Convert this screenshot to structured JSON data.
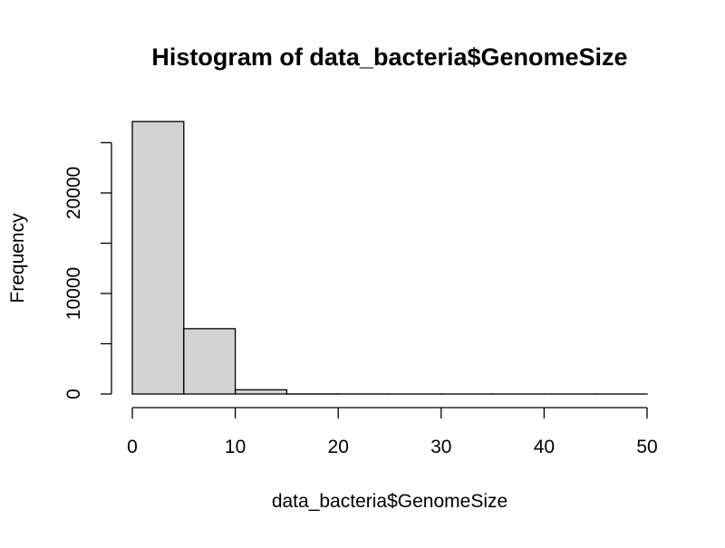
{
  "chart_data": {
    "type": "bar",
    "title": "Histogram of data_bacteria$GenomeSize",
    "xlabel": "data_bacteria$GenomeSize",
    "ylabel": "Frequency",
    "bins": [
      {
        "from": 0,
        "to": 5,
        "count": 27100
      },
      {
        "from": 5,
        "to": 10,
        "count": 6500
      },
      {
        "from": 10,
        "to": 15,
        "count": 420
      },
      {
        "from": 15,
        "to": 20,
        "count": 12
      },
      {
        "from": 20,
        "to": 25,
        "count": 5
      },
      {
        "from": 25,
        "to": 30,
        "count": 3
      },
      {
        "from": 30,
        "to": 35,
        "count": 2
      },
      {
        "from": 35,
        "to": 40,
        "count": 1
      },
      {
        "from": 40,
        "to": 45,
        "count": 1
      },
      {
        "from": 45,
        "to": 50,
        "count": 1
      }
    ],
    "xlim": [
      0,
      50
    ],
    "ylim": [
      0,
      25000
    ],
    "xticks": [
      0,
      10,
      20,
      30,
      40,
      50
    ],
    "yticks": [
      0,
      5000,
      10000,
      15000,
      20000,
      25000
    ],
    "ytick_labels": [
      "0",
      "",
      "10000",
      "",
      "20000",
      ""
    ],
    "grid": false,
    "bar_fill": "#d3d3d3",
    "bar_stroke": "#000000"
  }
}
